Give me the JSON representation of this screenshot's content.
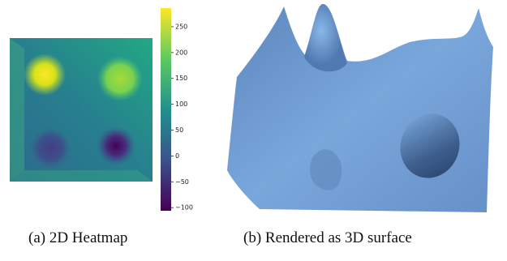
{
  "colorbar": {
    "lim": [
      -106,
      286
    ],
    "ticks": [
      {
        "value": -100,
        "label": "−100"
      },
      {
        "value": -50,
        "label": "−50"
      },
      0,
      50,
      100,
      150,
      200,
      250
    ]
  },
  "captions": [
    "(a) 2D Heatmap",
    "(b) Rendered as 3D surface"
  ]
}
